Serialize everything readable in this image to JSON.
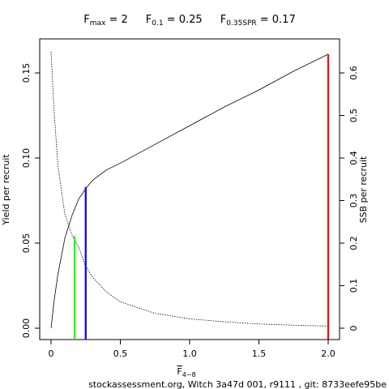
{
  "chart_data": {
    "type": "line",
    "title_parts": [
      {
        "base": "F",
        "sub": "max",
        "rest": " = 2"
      },
      {
        "base": "F",
        "sub": "0.1",
        "rest": " = 0.25"
      },
      {
        "base": "F",
        "sub": "0.35SPR",
        "rest": " = 0.17"
      }
    ],
    "x_label": {
      "base": "F",
      "sub": "4−8"
    },
    "y_label": "Yield per recruit",
    "y2_label": "SSB per recruit",
    "footer": "stockassessment.org, Witch 3a47d 001, r9111 , git: 8733eefe95be",
    "x": [
      0,
      0.02,
      0.05,
      0.1,
      0.15,
      0.2,
      0.25,
      0.3,
      0.4,
      0.5,
      0.75,
      1.0,
      1.25,
      1.5,
      1.75,
      2.0
    ],
    "series": [
      {
        "color": "#000000",
        "dash": false,
        "values": [
          0,
          0.015,
          0.032,
          0.053,
          0.066,
          0.076,
          0.082,
          0.087,
          0.093,
          0.097,
          0.108,
          0.119,
          0.13,
          0.14,
          0.151,
          0.161
        ]
      },
      {
        "color": "#000000",
        "dash": true,
        "axis": "y2",
        "values": [
          0.65,
          0.52,
          0.38,
          0.267,
          0.22,
          0.19,
          0.145,
          0.12,
          0.085,
          0.062,
          0.035,
          0.022,
          0.015,
          0.01,
          0.007,
          0.005
        ]
      }
    ],
    "vlines": [
      {
        "x": 2,
        "value": 0.161,
        "color": "#ff0000"
      },
      {
        "x": 0.25,
        "value": 0.083,
        "color": "#0000ff"
      },
      {
        "x": 0.17,
        "value": 0.054,
        "color": "#00ff00"
      }
    ],
    "xlim": [
      -0.0819,
      2.0819
    ],
    "xticks": [
      0,
      0.5,
      {
        "value": 1,
        "label": "1.0"
      },
      1.5,
      {
        "value": 2,
        "label": "2.0"
      }
    ],
    "ylim": [
      -0.00667,
      0.17
    ],
    "yticks": [
      {
        "value": 0,
        "label": "0.00"
      },
      0.05,
      {
        "value": 0.1,
        "label": "0.10"
      },
      0.15
    ],
    "y2lim": [
      -0.0267,
      0.68
    ],
    "y2ticks": [
      0,
      0.1,
      0.2,
      0.3,
      0.4,
      0.5,
      0.6
    ]
  }
}
